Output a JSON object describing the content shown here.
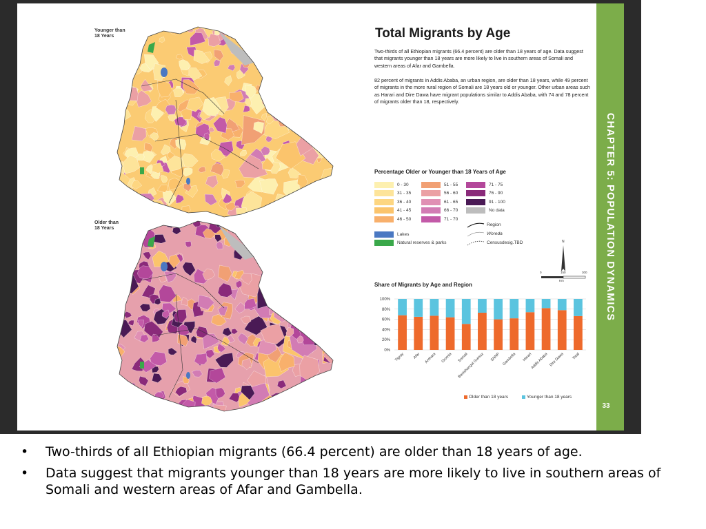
{
  "page": {
    "chapter_label": "CHAPTER 5: POPULATION DYNAMICS",
    "page_number": "33",
    "title": "Total Migrants by Age",
    "paragraph_1": "Two-thirds of all Ethiopian migrants (66.4 percent) are older than 18 years of age. Data suggest that migrants younger than 18 years are more likely to live in southern areas of Somali and western areas of Afar and Gambella.",
    "paragraph_2": "82 percent of migrants in Addis Ababa, an urban region, are older than 18 years, while 49 percent of migrants in the more rural region of Somali are 18 years old or younger. Other urban areas such as Harari and Dire Dawa have migrant populations similar to Addis Ababa, with 74 and 78 percent of migrants older than 18, respectively."
  },
  "maps": {
    "top_label": "Younger than\n18 Years",
    "bottom_label": "Older than\n18 Years",
    "north_symbol": "N",
    "scale_labels": [
      "0",
      "150",
      "300"
    ],
    "scale_unit": "Km"
  },
  "legend": {
    "title": "Percentage Older or Younger than 18 Years of Age",
    "bins": [
      {
        "label": "0 - 30",
        "color": "#fdf0b0"
      },
      {
        "label": "31 - 35",
        "color": "#fde49a"
      },
      {
        "label": "36 - 40",
        "color": "#fdd681"
      },
      {
        "label": "41 - 45",
        "color": "#fbc46c"
      },
      {
        "label": "46 - 50",
        "color": "#f8b06c"
      },
      {
        "label": "51 - 55",
        "color": "#f1a074"
      },
      {
        "label": "56 - 60",
        "color": "#eba0a4"
      },
      {
        "label": "61 - 65",
        "color": "#e090b4"
      },
      {
        "label": "66 - 70",
        "color": "#d27cb4"
      },
      {
        "label": "71 - 70",
        "color": "#c35aa8"
      },
      {
        "label": "71 - 75",
        "color": "#b3479a"
      },
      {
        "label": "76 - 90",
        "color": "#8a2a7a"
      },
      {
        "label": "91 - 100",
        "color": "#4a1a55"
      },
      {
        "label": "No data",
        "color": "#bdbdbd"
      }
    ],
    "lakes": {
      "label": "Lakes",
      "color": "#4a78c2"
    },
    "parks": {
      "label": "Natural reserves & parks",
      "color": "#3aa84a"
    },
    "lines": {
      "region": "Region",
      "woreda": "Woreda",
      "census": "Censusdesig.TBD"
    }
  },
  "chart_data": {
    "type": "bar",
    "stacked": true,
    "title": "Share of Migrants by Age and Region",
    "categories": [
      "Tigray",
      "Afar",
      "Amhara",
      "Oromia",
      "Somali",
      "Benishangul Gumuz",
      "SNNP",
      "Gambella",
      "Harari",
      "Addis Ababa",
      "Dire Dawa",
      "Total"
    ],
    "series": [
      {
        "name": "Older than 18 years",
        "color": "#ee6a2c",
        "values": [
          68,
          65,
          67,
          64,
          51,
          73,
          60,
          62,
          74,
          82,
          78,
          66.4
        ]
      },
      {
        "name": "Younger than 18 years",
        "color": "#5bc4df",
        "values": [
          32,
          35,
          33,
          36,
          49,
          27,
          40,
          38,
          26,
          18,
          22,
          33.6
        ]
      }
    ],
    "y_ticks": [
      "0%",
      "20%",
      "40%",
      "60%",
      "80%",
      "100%"
    ],
    "ylim": [
      0,
      100
    ],
    "grid": true,
    "legend_position": "bottom-right"
  },
  "bullets": [
    "Two-thirds of all Ethiopian migrants (66.4 percent) are older than 18 years of age.",
    "Data suggest that migrants younger than 18 years are more likely to live in southern areas of Somali and western areas of Afar and Gambella."
  ]
}
